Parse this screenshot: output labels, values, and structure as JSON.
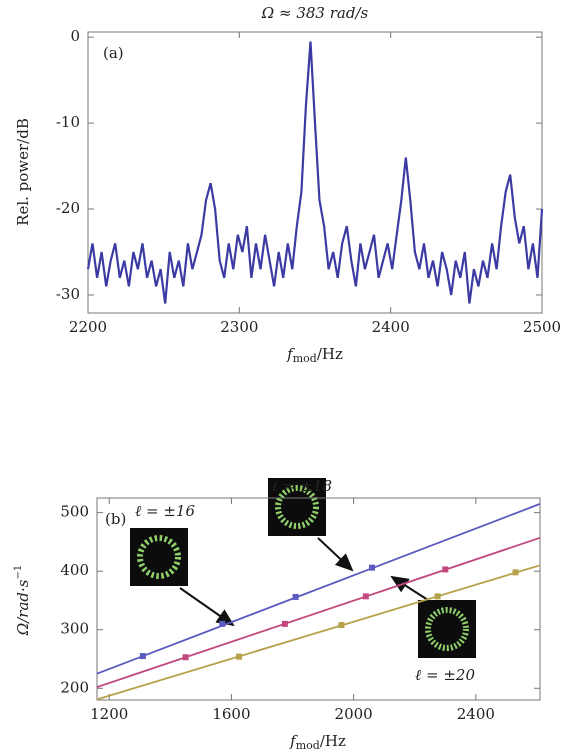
{
  "chart_data": [
    {
      "type": "line",
      "title": "Ω ≈ 383 rad/s",
      "annotation": "(a)",
      "xlabel": {
        "main": "f",
        "sub": "mod",
        "unit": "/Hz"
      },
      "ylabel": "Rel. power/dB",
      "xlim": [
        2200,
        2500
      ],
      "xticks": [
        2200,
        2300,
        2400,
        2500
      ],
      "ylim": [
        -32.1,
        0.6
      ],
      "yticks": [
        0,
        -10,
        -20,
        -30
      ],
      "x": [
        2200,
        2203,
        2206,
        2209,
        2212,
        2215,
        2218,
        2221,
        2224,
        2227,
        2230,
        2233,
        2236,
        2239,
        2242,
        2245,
        2248,
        2251,
        2254,
        2257,
        2260,
        2263,
        2266,
        2269,
        2272,
        2275,
        2278,
        2281,
        2284,
        2287,
        2290,
        2293,
        2296,
        2299,
        2302,
        2305,
        2308,
        2311,
        2314,
        2317,
        2320,
        2323,
        2326,
        2329,
        2332,
        2335,
        2338,
        2341,
        2344,
        2347,
        2350,
        2353,
        2356,
        2359,
        2362,
        2365,
        2368,
        2371,
        2374,
        2377,
        2380,
        2383,
        2386,
        2389,
        2392,
        2395,
        2398,
        2401,
        2404,
        2407,
        2410,
        2413,
        2416,
        2419,
        2422,
        2425,
        2428,
        2431,
        2434,
        2437,
        2440,
        2443,
        2446,
        2449,
        2452,
        2455,
        2458,
        2461,
        2464,
        2467,
        2470,
        2473,
        2476,
        2479,
        2482,
        2485,
        2488,
        2491,
        2494,
        2497,
        2500
      ],
      "series": [
        {
          "color": "#3b3ba3",
          "values": [
            -27,
            -24,
            -28,
            -25,
            -29,
            -26,
            -24,
            -28,
            -26,
            -29,
            -25,
            -27,
            -24,
            -28,
            -26,
            -29,
            -27,
            -31,
            -25,
            -28,
            -26,
            -29,
            -24,
            -27,
            -25,
            -23,
            -19,
            -17,
            -20,
            -26,
            -28,
            -24,
            -27,
            -23,
            -25,
            -22,
            -28,
            -24,
            -27,
            -23,
            -26,
            -29,
            -25,
            -28,
            -24,
            -27,
            -22,
            -18,
            -8,
            -0.5,
            -10,
            -19,
            -22,
            -27,
            -25,
            -28,
            -24,
            -22,
            -26,
            -29,
            -24,
            -27,
            -25,
            -23,
            -28,
            -26,
            -24,
            -27,
            -23,
            -19,
            -14,
            -19,
            -25,
            -27,
            -24,
            -28,
            -26,
            -29,
            -25,
            -27,
            -30,
            -26,
            -28,
            -25,
            -31,
            -27,
            -29,
            -26,
            -28,
            -24,
            -27,
            -22,
            -18,
            -16,
            -21,
            -24,
            -22,
            -27,
            -24,
            -28,
            -20
          ]
        }
      ]
    },
    {
      "type": "scatter",
      "annotation": "(b)",
      "xlabel": {
        "main": "f",
        "sub": "mod",
        "unit": "/Hz"
      },
      "ylabel": {
        "main": "Ω/rad·s",
        "sup": "−1"
      },
      "xlim": [
        1160,
        2610
      ],
      "xticks": [
        1200,
        1600,
        2000,
        2400
      ],
      "ylim": [
        180,
        525
      ],
      "yticks": [
        200,
        300,
        400,
        500
      ],
      "series": [
        {
          "name": "ℓ = ±16",
          "color": "#5a5ac0",
          "x": [
            1310,
            1570,
            1810,
            2060
          ],
          "values": [
            255,
            310,
            356,
            406
          ],
          "fit_x": [
            1160,
            2610
          ],
          "fit_y": [
            225,
            515
          ]
        },
        {
          "name": "ℓ = ±18",
          "color": "#c24a80",
          "x": [
            1450,
            1775,
            2040,
            2300
          ],
          "values": [
            253,
            310,
            357,
            403
          ],
          "fit_x": [
            1160,
            2610
          ],
          "fit_y": [
            202,
            457
          ]
        },
        {
          "name": "ℓ = ±20",
          "color": "#b5a24a",
          "x": [
            1625,
            1960,
            2275,
            2530
          ],
          "values": [
            254,
            308,
            357,
            398
          ],
          "fit_x": [
            1160,
            2610
          ],
          "fit_y": [
            181,
            410
          ]
        }
      ]
    }
  ]
}
